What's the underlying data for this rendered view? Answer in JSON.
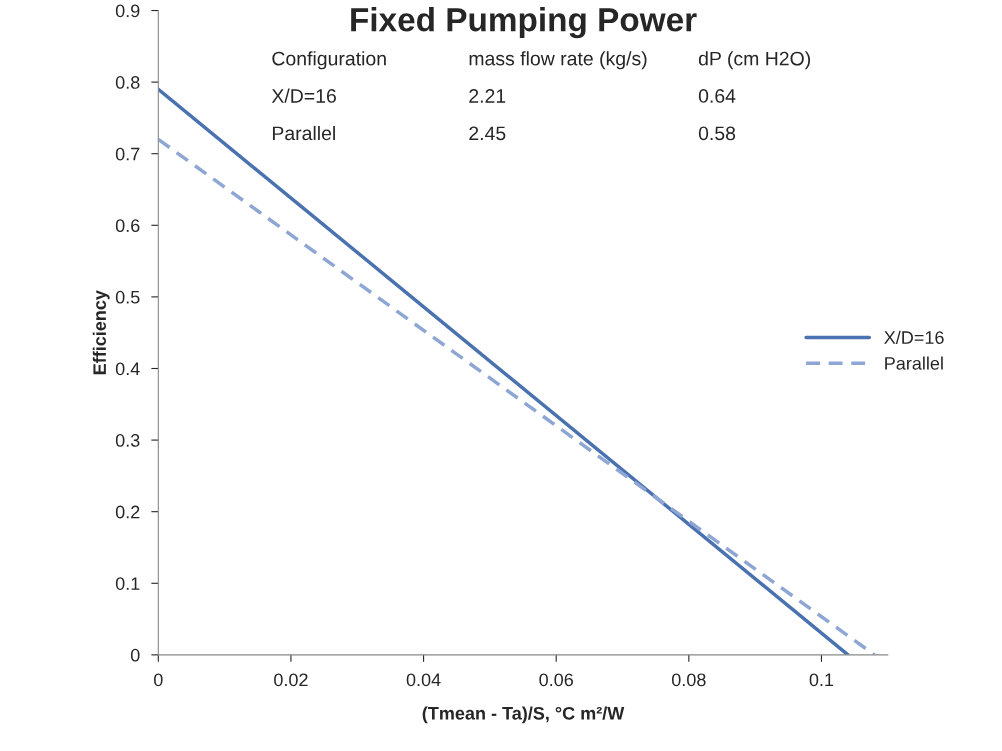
{
  "chart_data": {
    "type": "line",
    "title": "Fixed Pumping Power",
    "xlabel": "(Tmean - Ta)/S, °C m²/W",
    "ylabel": "Efficiency",
    "series": [
      {
        "name": "X/D=16",
        "color": "#4a72b0",
        "x": [
          0,
          0.104
        ],
        "values": [
          0.79,
          0
        ],
        "line_style": "solid"
      },
      {
        "name": "Parallel",
        "color": "#8ea6d4",
        "x": [
          0,
          0.108
        ],
        "values": [
          0.72,
          0
        ],
        "line_style": "dashed"
      }
    ],
    "xlim": [
      0,
      0.11
    ],
    "xticks": [
      {
        "value": 0,
        "label": "0"
      },
      {
        "value": 0.02,
        "label": "0.02"
      },
      {
        "value": 0.04,
        "label": "0.04"
      },
      {
        "value": 0.06,
        "label": "0.06"
      },
      {
        "value": 0.08,
        "label": "0.08"
      },
      {
        "value": 0.1,
        "label": "0.1"
      }
    ],
    "ylim": [
      0,
      0.9
    ],
    "yticks": [
      {
        "value": 0,
        "label": "0"
      },
      {
        "value": 0.1,
        "label": "0.1"
      },
      {
        "value": 0.2,
        "label": "0.2"
      },
      {
        "value": 0.3,
        "label": "0.3"
      },
      {
        "value": 0.4,
        "label": "0.4"
      },
      {
        "value": 0.5,
        "label": "0.5"
      },
      {
        "value": 0.6,
        "label": "0.6"
      },
      {
        "value": 0.7,
        "label": "0.7"
      },
      {
        "value": 0.8,
        "label": "0.8"
      },
      {
        "value": 0.9,
        "label": "0.9"
      }
    ],
    "grid": false,
    "legend": "right",
    "annotations": [
      "Configuration",
      "mass flow rate (kg/s)",
      "dP (cm H2O)",
      "X/D=16",
      "2.21",
      "0.64",
      "Parallel",
      "2.45",
      "0.58"
    ]
  }
}
